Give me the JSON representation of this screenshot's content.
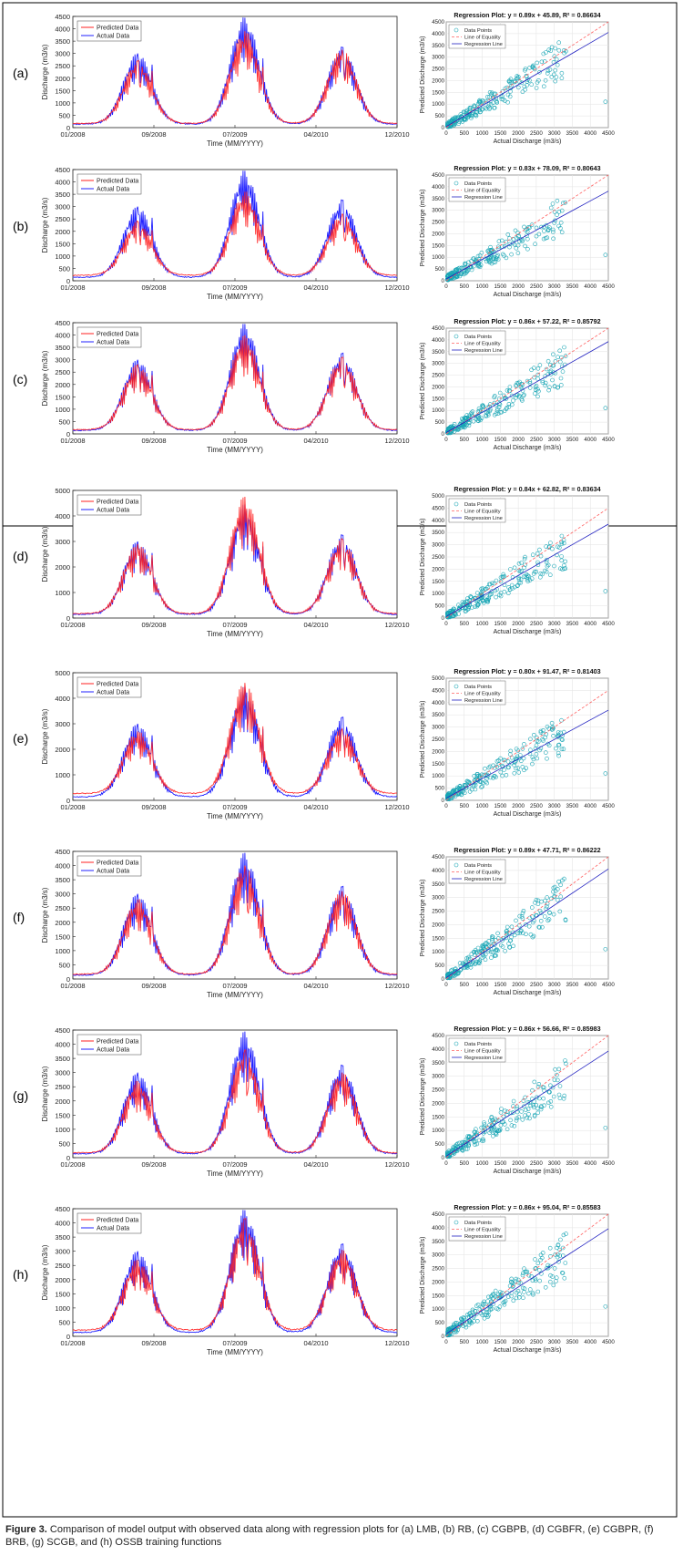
{
  "figure": {
    "caption_label": "Figure 3.",
    "caption_text": "Comparison of model output with observed data along with regression plots for (a) LMB, (b) RB, (c) CGBPB, (d) CGBFR, (e) CGBPR, (f) BRB, (g) SCGB, and (h) OSSB training functions"
  },
  "chart_data": [
    {
      "type": "line",
      "panel": "(a)",
      "xlabel": "Time (MM/YYYY)",
      "ylabel": "Discharge (m3/s)",
      "x_ticks": [
        "01/2008",
        "09/2008",
        "07/2009",
        "04/2010",
        "12/2010"
      ],
      "ylim": [
        0,
        4500
      ],
      "y_ticks": [
        0,
        500,
        1000,
        1500,
        2000,
        2500,
        3000,
        3500,
        4000,
        4500
      ],
      "legend": [
        "Predicted Data",
        "Actual Data"
      ],
      "colors": {
        "predicted": "#ff2020",
        "actual": "#2020ff"
      },
      "peaks": {
        "actual": [
          3000,
          4450,
          3250
        ],
        "predicted": [
          2700,
          3900,
          3150
        ]
      },
      "baseline": 150
    },
    {
      "type": "line",
      "panel": "(b)",
      "xlabel": "Time (MM/YYYY)",
      "ylabel": "Discharge (m3/s)",
      "x_ticks": [
        "01/2008",
        "09/2008",
        "07/2009",
        "04/2010",
        "12/2010"
      ],
      "ylim": [
        0,
        4500
      ],
      "y_ticks": [
        0,
        500,
        1000,
        1500,
        2000,
        2500,
        3000,
        3500,
        4000,
        4500
      ],
      "legend": [
        "Predicted Data",
        "Actual Data"
      ],
      "colors": {
        "predicted": "#ff2020",
        "actual": "#2020ff"
      },
      "peaks": {
        "actual": [
          3000,
          4450,
          3250
        ],
        "predicted": [
          2400,
          3600,
          2700
        ]
      },
      "baseline": 200
    },
    {
      "type": "line",
      "panel": "(c)",
      "xlabel": "Time (MM/YYYY)",
      "ylabel": "Discharge (m3/s)",
      "x_ticks": [
        "01/2008",
        "09/2008",
        "07/2009",
        "04/2010",
        "12/2010"
      ],
      "ylim": [
        0,
        4500
      ],
      "y_ticks": [
        0,
        500,
        1000,
        1500,
        2000,
        2500,
        3000,
        3500,
        4000,
        4500
      ],
      "legend": [
        "Predicted Data",
        "Actual Data"
      ],
      "colors": {
        "predicted": "#ff2020",
        "actual": "#2020ff"
      },
      "peaks": {
        "actual": [
          3000,
          4450,
          3250
        ],
        "predicted": [
          2800,
          4000,
          3100
        ]
      },
      "baseline": 150
    },
    {
      "type": "line",
      "panel": "(d)",
      "xlabel": "Time (MM/YYYY)",
      "ylabel": "Discharge (m3/s)",
      "x_ticks": [
        "01/2008",
        "09/2008",
        "07/2009",
        "04/2010",
        "12/2010"
      ],
      "ylim": [
        0,
        5000
      ],
      "y_ticks": [
        0,
        1000,
        2000,
        3000,
        4000,
        5000
      ],
      "legend": [
        "Predicted Data",
        "Actual Data"
      ],
      "colors": {
        "predicted": "#ff2020",
        "actual": "#2020ff"
      },
      "peaks": {
        "actual": [
          3000,
          4450,
          3250
        ],
        "predicted": [
          2900,
          4750,
          3100
        ]
      },
      "baseline": 150
    },
    {
      "type": "line",
      "panel": "(e)",
      "xlabel": "Time (MM/YYYY)",
      "ylabel": "Discharge (m3/s)",
      "x_ticks": [
        "01/2008",
        "09/2008",
        "07/2009",
        "04/2010",
        "12/2010"
      ],
      "ylim": [
        0,
        5000
      ],
      "y_ticks": [
        0,
        1000,
        2000,
        3000,
        4000,
        5000
      ],
      "legend": [
        "Predicted Data",
        "Actual Data"
      ],
      "colors": {
        "predicted": "#ff2020",
        "actual": "#2020ff"
      },
      "peaks": {
        "actual": [
          3000,
          4450,
          3250
        ],
        "predicted": [
          2700,
          4600,
          2800
        ]
      },
      "baseline": 250
    },
    {
      "type": "line",
      "panel": "(f)",
      "xlabel": "Time (MM/YYYY)",
      "ylabel": "Discharge (m3/s)",
      "x_ticks": [
        "01/2008",
        "09/2008",
        "07/2009",
        "04/2010",
        "12/2010"
      ],
      "ylim": [
        0,
        4500
      ],
      "y_ticks": [
        0,
        500,
        1000,
        1500,
        2000,
        2500,
        3000,
        3500,
        4000,
        4500
      ],
      "legend": [
        "Predicted Data",
        "Actual Data"
      ],
      "colors": {
        "predicted": "#ff2020",
        "actual": "#2020ff"
      },
      "peaks": {
        "actual": [
          3000,
          4450,
          3250
        ],
        "predicted": [
          2800,
          4000,
          3100
        ]
      },
      "baseline": 150
    },
    {
      "type": "line",
      "panel": "(g)",
      "xlabel": "Time (MM/YYYY)",
      "ylabel": "Discharge (m3/s)",
      "x_ticks": [
        "01/2008",
        "09/2008",
        "07/2009",
        "04/2010",
        "12/2010"
      ],
      "ylim": [
        0,
        4500
      ],
      "y_ticks": [
        0,
        500,
        1000,
        1500,
        2000,
        2500,
        3000,
        3500,
        4000,
        4500
      ],
      "legend": [
        "Predicted Data",
        "Actual Data"
      ],
      "colors": {
        "predicted": "#ff2020",
        "actual": "#2020ff"
      },
      "peaks": {
        "actual": [
          3000,
          4450,
          3250
        ],
        "predicted": [
          2700,
          3800,
          3000
        ]
      },
      "baseline": 150
    },
    {
      "type": "line",
      "panel": "(h)",
      "xlabel": "Time (MM/YYYY)",
      "ylabel": "Discharge (m3/s)",
      "x_ticks": [
        "01/2008",
        "09/2008",
        "07/2009",
        "04/2010",
        "12/2010"
      ],
      "ylim": [
        0,
        4500
      ],
      "y_ticks": [
        0,
        500,
        1000,
        1500,
        2000,
        2500,
        3000,
        3500,
        4000,
        4500
      ],
      "legend": [
        "Predicted Data",
        "Actual Data"
      ],
      "colors": {
        "predicted": "#ff2020",
        "actual": "#2020ff"
      },
      "peaks": {
        "actual": [
          3000,
          4450,
          3250
        ],
        "predicted": [
          2700,
          4150,
          3050
        ]
      },
      "baseline": 200
    },
    {
      "type": "scatter",
      "panel": "(a)",
      "title": "Regression Plot: y = 0.89x + 45.89, R² = 0.86634",
      "slope": 0.89,
      "intercept": 45.89,
      "r2": 0.86634,
      "xlim": [
        0,
        4500
      ],
      "ylim": [
        0,
        4500
      ],
      "xlabel": "Actual Discharge (m3/s)",
      "ylabel": "Predicted Discharge (m3/s)",
      "legend": [
        "Data Points",
        "Line of Equality",
        "Regression Line"
      ],
      "ticks": [
        0,
        500,
        1000,
        1500,
        2000,
        2500,
        3000,
        3500,
        4000,
        4500
      ]
    },
    {
      "type": "scatter",
      "panel": "(b)",
      "title": "Regression Plot: y = 0.83x + 78.09, R² = 0.80643",
      "slope": 0.83,
      "intercept": 78.09,
      "r2": 0.80643,
      "xlim": [
        0,
        4500
      ],
      "ylim": [
        0,
        4500
      ],
      "xlabel": "Actual Discharge (m3/s)",
      "ylabel": "Predicted Discharge (m3/s)",
      "legend": [
        "Data Points",
        "Line of Equality",
        "Regression Line"
      ],
      "ticks": [
        0,
        500,
        1000,
        1500,
        2000,
        2500,
        3000,
        3500,
        4000,
        4500
      ]
    },
    {
      "type": "scatter",
      "panel": "(c)",
      "title": "Regression Plot: y = 0.86x + 57.22, R² = 0.85792",
      "slope": 0.86,
      "intercept": 57.22,
      "r2": 0.85792,
      "xlim": [
        0,
        4500
      ],
      "ylim": [
        0,
        4500
      ],
      "xlabel": "Actual Discharge (m3/s)",
      "ylabel": "Predicted Discharge (m3/s)",
      "legend": [
        "Data Points",
        "Line of Equality",
        "Regression Line"
      ],
      "ticks": [
        0,
        500,
        1000,
        1500,
        2000,
        2500,
        3000,
        3500,
        4000,
        4500
      ]
    },
    {
      "type": "scatter",
      "panel": "(d)",
      "title": "Regression Plot: y = 0.84x + 62.82, R² = 0.83634",
      "slope": 0.84,
      "intercept": 62.82,
      "r2": 0.83634,
      "xlim": [
        0,
        4500
      ],
      "ylim": [
        0,
        5000
      ],
      "xlabel": "Actual Discharge (m3/s)",
      "ylabel": "Predicted Discharge (m3/s)",
      "legend": [
        "Data Points",
        "Line of Equality",
        "Regression Line"
      ],
      "ticks": [
        0,
        500,
        1000,
        1500,
        2000,
        2500,
        3000,
        3500,
        4000,
        4500,
        5000
      ]
    },
    {
      "type": "scatter",
      "panel": "(e)",
      "title": "Regression Plot: y = 0.80x + 91.47, R² = 0.81403",
      "slope": 0.8,
      "intercept": 91.47,
      "r2": 0.81403,
      "xlim": [
        0,
        4500
      ],
      "ylim": [
        0,
        5000
      ],
      "xlabel": "Actual Discharge (m3/s)",
      "ylabel": "Predicted Discharge (m3/s)",
      "legend": [
        "Data Points",
        "Line of Equality",
        "Regression Line"
      ],
      "ticks": [
        0,
        500,
        1000,
        1500,
        2000,
        2500,
        3000,
        3500,
        4000,
        4500,
        5000
      ]
    },
    {
      "type": "scatter",
      "panel": "(f)",
      "title": "Regression Plot: y = 0.89x + 47.71, R² = 0.86222",
      "slope": 0.89,
      "intercept": 47.71,
      "r2": 0.86222,
      "xlim": [
        0,
        4500
      ],
      "ylim": [
        0,
        4500
      ],
      "xlabel": "Actual Discharge (m3/s)",
      "ylabel": "Predicted Discharge (m3/s)",
      "legend": [
        "Data Points",
        "Line of Equality",
        "Regression Line"
      ],
      "ticks": [
        0,
        500,
        1000,
        1500,
        2000,
        2500,
        3000,
        3500,
        4000,
        4500
      ]
    },
    {
      "type": "scatter",
      "panel": "(g)",
      "title": "Regression Plot: y = 0.86x + 56.66, R² = 0.85983",
      "slope": 0.86,
      "intercept": 56.66,
      "r2": 0.85983,
      "xlim": [
        0,
        4500
      ],
      "ylim": [
        0,
        4500
      ],
      "xlabel": "Actual Discharge (m3/s)",
      "ylabel": "Predicted Discharge (m3/s)",
      "legend": [
        "Data Points",
        "Line of Equality",
        "Regression Line"
      ],
      "ticks": [
        0,
        500,
        1000,
        1500,
        2000,
        2500,
        3000,
        3500,
        4000,
        4500
      ]
    },
    {
      "type": "scatter",
      "panel": "(h)",
      "title": "Regression Plot: y = 0.86x + 95.04, R² = 0.85583",
      "slope": 0.86,
      "intercept": 95.04,
      "r2": 0.85583,
      "xlim": [
        0,
        4500
      ],
      "ylim": [
        0,
        4500
      ],
      "xlabel": "Actual Discharge (m3/s)",
      "ylabel": "Predicted Discharge (m3/s)",
      "legend": [
        "Data Points",
        "Line of Equality",
        "Regression Line"
      ],
      "ticks": [
        0,
        500,
        1000,
        1500,
        2000,
        2500,
        3000,
        3500,
        4000,
        4500
      ]
    }
  ]
}
